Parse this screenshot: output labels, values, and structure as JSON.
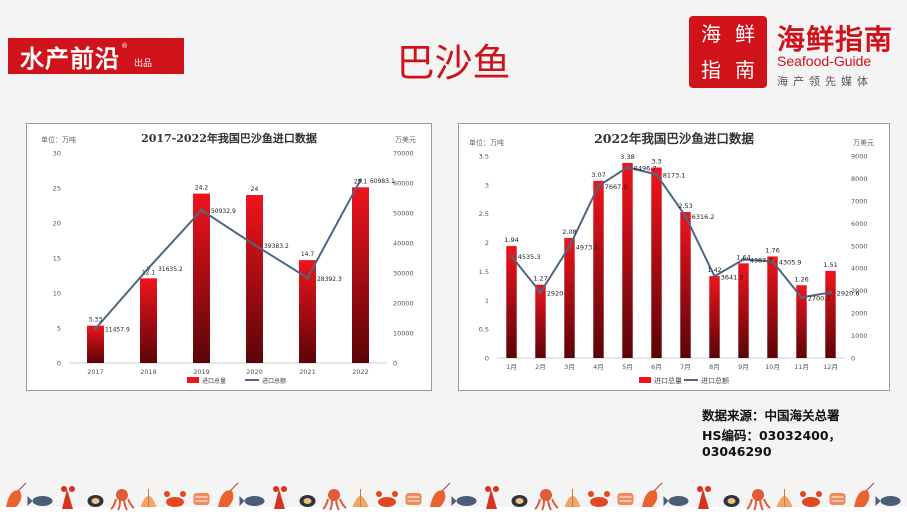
{
  "header": {
    "logo_main": "水产前沿",
    "logo_reg": "®",
    "logo_sub": "出品",
    "title": "巴沙鱼",
    "brand_mark_chars": [
      "海",
      "鲜",
      "指",
      "南"
    ],
    "brand_cn": "海鲜指南",
    "brand_en": "Seafood-Guide",
    "brand_slogan": "海产领先媒体"
  },
  "colors": {
    "accent": "#d0121b",
    "bar_top": "#f0141d",
    "bar_bottom": "#5a0408",
    "line": "#4f6680"
  },
  "source": {
    "line1": "数据来源：中国海关总署",
    "line2": "HS编码：03032400，03046290"
  },
  "decor_icons": [
    "shrimp-icon",
    "crab-icon",
    "fish-icon",
    "mussel-icon",
    "lobster-icon",
    "octopus-icon",
    "scallop-icon",
    "salmon-icon"
  ],
  "chart_data": [
    {
      "type": "bar",
      "title": "2017-2022年我国巴沙鱼进口数据",
      "left_unit": "单位：万吨",
      "right_unit": "万美元",
      "categories": [
        "2017",
        "2018",
        "2019",
        "2020",
        "2021",
        "2022"
      ],
      "series": [
        {
          "name": "进口总量",
          "kind": "bar",
          "axis": "left",
          "values": [
            5.33,
            12.1,
            24.2,
            24,
            14.7,
            25.1
          ],
          "labels": [
            "5.33",
            "12.1",
            "24.2",
            "24",
            "14.7",
            "25.1"
          ]
        },
        {
          "name": "进口总额",
          "kind": "line",
          "axis": "right",
          "values": [
            11457.9,
            31635.2,
            50932.9,
            39383.2,
            28392.3,
            60983.1
          ],
          "labels": [
            "11457.9",
            "31635.2",
            "50932.9",
            "39383.2",
            "28392.3",
            "60983.1"
          ]
        }
      ],
      "ylim_left": [
        0,
        30
      ],
      "yticks_left": [
        "0",
        "5",
        "10",
        "15",
        "20",
        "25",
        "30"
      ],
      "ylim_right": [
        0,
        70000
      ],
      "yticks_right": [
        "0",
        "10000",
        "20000",
        "30000",
        "40000",
        "50000",
        "60000",
        "70000"
      ],
      "legend_position": "bottom",
      "grid": false
    },
    {
      "type": "bar",
      "title": "2022年我国巴沙鱼进口数据",
      "left_unit": "单位：万吨",
      "right_unit": "万美元",
      "categories": [
        "1月",
        "2月",
        "3月",
        "4月",
        "5月",
        "6月",
        "7月",
        "8月",
        "9月",
        "10月",
        "11月",
        "12月"
      ],
      "series": [
        {
          "name": "进口总量",
          "kind": "bar",
          "axis": "left",
          "values": [
            1.94,
            1.27,
            2.08,
            3.07,
            3.38,
            3.3,
            2.53,
            1.42,
            1.64,
            1.76,
            1.26,
            1.51
          ],
          "labels": [
            "1.94",
            "1.27",
            "2.08",
            "3.07",
            "3.38",
            "3.3",
            "2.53",
            "1.42",
            "1.64",
            "1.76",
            "1.26",
            "1.51"
          ]
        },
        {
          "name": "进口总额",
          "kind": "line",
          "axis": "right",
          "values": [
            4535.3,
            2920,
            4973.5,
            7667.9,
            8496.7,
            8173.1,
            6316.2,
            3641.5,
            4387.7,
            4305.9,
            2700.2,
            2920.6
          ],
          "labels": [
            "4535.3",
            "2920",
            "4973.5",
            "7667.9",
            "8496.7",
            "8173.1",
            "6316.2",
            "3641.5",
            "4387.7",
            "4305.9",
            "2700.2",
            "2920.6"
          ]
        }
      ],
      "ylim_left": [
        0,
        3.5
      ],
      "yticks_left": [
        "0",
        "0.5",
        "1",
        "1.5",
        "2",
        "2.5",
        "3",
        "3.5"
      ],
      "ylim_right": [
        0,
        9000
      ],
      "yticks_right": [
        "0",
        "1000",
        "2000",
        "3000",
        "4000",
        "5000",
        "6000",
        "7000",
        "8000",
        "9000"
      ],
      "legend_position": "bottom",
      "grid": false
    }
  ]
}
